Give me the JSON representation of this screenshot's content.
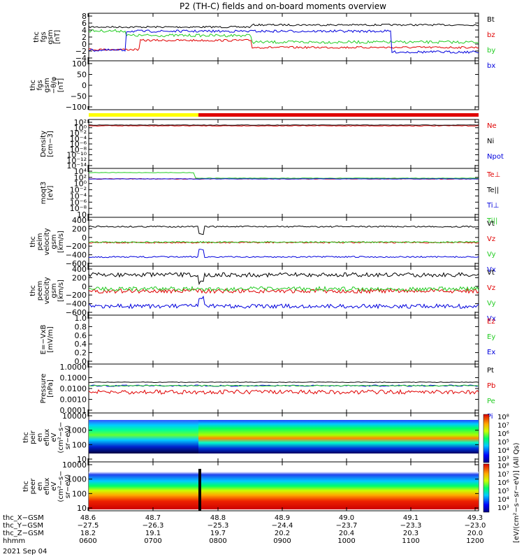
{
  "title": "P2 (TH-C) fields and on-board moments overview",
  "colors": {
    "black": "#000000",
    "red": "#e00000",
    "green": "#22cc22",
    "blue": "#0000dd",
    "yellow": "#ffff00"
  },
  "chart_data": [
    {
      "type": "line",
      "id": "fgs",
      "ylabel": [
        "thc",
        "fgs",
        "gsm",
        "[nT]"
      ],
      "yticks": [
        "8",
        "6",
        "4",
        "2",
        "0",
        "−2",
        "−4"
      ],
      "ylim": [
        -5,
        8.5
      ],
      "series": [
        {
          "name": "Bt",
          "color": "#000000"
        },
        {
          "name": "bz",
          "color": "#e00000"
        },
        {
          "name": "by",
          "color": "#22cc22"
        },
        {
          "name": "bx",
          "color": "#0000dd"
        }
      ]
    },
    {
      "type": "line",
      "id": "fgs-theta",
      "ylabel": [
        "thc",
        "fgs",
        "gsm",
        "−θ/φ",
        "[nT]"
      ],
      "yticks": [
        "100",
        "50",
        "0",
        "−50",
        "−100"
      ],
      "ylim": [
        -135,
        100
      ],
      "series": []
    },
    {
      "type": "bar",
      "id": "mode-bar",
      "segments": [
        {
          "from": "0545",
          "to": "0730",
          "color": "#ffff00"
        },
        {
          "from": "0730",
          "to": "1230",
          "color": "#e00000"
        }
      ]
    },
    {
      "type": "line",
      "id": "density",
      "ylabel": [
        "Density",
        "[cm−3]"
      ],
      "scale": "log",
      "yticks": [
        "10²",
        "10⁰",
        "10⁻²",
        "10⁻⁴",
        "10⁻⁶",
        "10⁻⁸",
        "10⁻¹⁰",
        "10⁻¹²",
        "10⁻¹⁴"
      ],
      "series": [
        {
          "name": "Ne",
          "color": "#e00000"
        },
        {
          "name": "Ni",
          "color": "#000000"
        },
        {
          "name": "Npot",
          "color": "#0000dd"
        }
      ]
    },
    {
      "type": "line",
      "id": "temp",
      "ylabel": [
        "moqt3",
        "[eV]"
      ],
      "scale": "log",
      "yticks": [
        "10⁴",
        "10²",
        "10⁰",
        "10⁻²",
        "10⁻⁴",
        "10⁻⁶",
        "10⁻⁸",
        "10"
      ],
      "series": [
        {
          "name": "Te⊥",
          "color": "#e00000"
        },
        {
          "name": "Te||",
          "color": "#000000"
        },
        {
          "name": "Ti⊥",
          "color": "#0000dd"
        },
        {
          "name": "Ti||",
          "color": "#22cc22"
        }
      ]
    },
    {
      "type": "line",
      "id": "peim-vel",
      "ylabel": [
        "thc",
        "peim",
        "velocity",
        "gsm",
        "[km/s]"
      ],
      "yticks": [
        "400",
        "200",
        "0",
        "−200",
        "−400",
        "−600"
      ],
      "ylim": [
        -600,
        600
      ],
      "series": [
        {
          "name": "Vt",
          "color": "#000000",
          "values": [
            420,
            420,
            420,
            420,
            420,
            420
          ]
        },
        {
          "name": "Vz",
          "color": "#e00000",
          "values": [
            -20,
            -20,
            -20,
            -20,
            -20,
            -20
          ]
        },
        {
          "name": "Vy",
          "color": "#22cc22",
          "values": [
            -10,
            -10,
            -10,
            -10,
            -10,
            -10
          ]
        },
        {
          "name": "Vx",
          "color": "#0000dd",
          "values": [
            -420,
            -420,
            -420,
            -420,
            -420,
            -420
          ]
        }
      ]
    },
    {
      "type": "line",
      "id": "peem-vel",
      "ylabel": [
        "thc",
        "peem",
        "velocity",
        "gsm",
        "[km/s]"
      ],
      "yticks": [
        "400",
        "200",
        "0",
        "−200",
        "−400",
        "−600"
      ],
      "ylim": [
        -600,
        600
      ],
      "series": [
        {
          "name": "Vt",
          "color": "#000000",
          "values": [
            440,
            440,
            440,
            440,
            440,
            440
          ]
        },
        {
          "name": "Vz",
          "color": "#e00000",
          "values": [
            -10,
            -10,
            -10,
            -10,
            -10,
            -10
          ]
        },
        {
          "name": "Vy",
          "color": "#22cc22",
          "values": [
            50,
            50,
            50,
            50,
            50,
            50
          ]
        },
        {
          "name": "Vx",
          "color": "#0000dd",
          "values": [
            -430,
            -430,
            -430,
            -430,
            -430,
            -430
          ]
        }
      ]
    },
    {
      "type": "line",
      "id": "efield",
      "ylabel": [
        "E=−VxB",
        "[mV/m]"
      ],
      "yticks": [
        "1.0",
        "0.8",
        "0.6",
        "0.4",
        "0.2",
        "0.0"
      ],
      "ylim": [
        0,
        1
      ],
      "series": [
        {
          "name": "Ez",
          "color": "#e00000"
        },
        {
          "name": "Ey",
          "color": "#22cc22"
        },
        {
          "name": "Ex",
          "color": "#0000dd"
        }
      ]
    },
    {
      "type": "line",
      "id": "pressure",
      "ylabel": [
        "Pressure",
        "[nPa]"
      ],
      "scale": "log",
      "yticks": [
        "1.0000",
        "0.1000",
        "0.0100",
        "0.0010",
        "0.0001"
      ],
      "series": [
        {
          "name": "Pt",
          "color": "#000000"
        },
        {
          "name": "Pb",
          "color": "#e00000"
        },
        {
          "name": "Pe",
          "color": "#22cc22"
        },
        {
          "name": "Pi",
          "color": "#0000dd"
        }
      ]
    },
    {
      "type": "heatmap",
      "id": "peir",
      "ylabel": [
        "thc",
        "peir",
        "en",
        "eflux",
        "eV",
        "(cm²−s−",
        "sr−eV)"
      ],
      "yticks": [
        "10000",
        "1000",
        "100",
        "10"
      ]
    },
    {
      "type": "heatmap",
      "id": "peer",
      "ylabel": [
        "thc",
        "peer",
        "en",
        "eflux",
        "eV",
        "(cm²−s−",
        "sr−eV)"
      ],
      "yticks": [
        "10000",
        "1000",
        "100",
        "10"
      ]
    }
  ],
  "colorbar": {
    "label": "[eV/(cm²−s−sr−eV)] (All Qs)",
    "ticks1": [
      "10⁸",
      "10⁷",
      "10⁶",
      "10⁵",
      "10⁴",
      "10³"
    ],
    "ticks2": [
      "10⁸",
      "10⁷",
      "10⁶",
      "10⁵",
      "10⁴",
      "10³"
    ]
  },
  "ephemeris": {
    "rows": [
      {
        "label": "thc_X−GSM",
        "values": [
          "48.6",
          "48.7",
          "48.8",
          "48.9",
          "49.0",
          "49.1",
          "49.3"
        ]
      },
      {
        "label": "thc_Y−GSM",
        "values": [
          "−27.5",
          "−26.3",
          "−25.3",
          "−24.4",
          "−23.7",
          "−23.3",
          "−23.0"
        ]
      },
      {
        "label": "thc_Z−GSM",
        "values": [
          "18.2",
          "19.1",
          "19.7",
          "20.2",
          "20.4",
          "20.3",
          "20.0"
        ]
      },
      {
        "label": "hhmm",
        "values": [
          "0600",
          "0700",
          "0800",
          "0900",
          "1000",
          "1100",
          "1200"
        ]
      }
    ],
    "date": "2021 Sep 04"
  }
}
